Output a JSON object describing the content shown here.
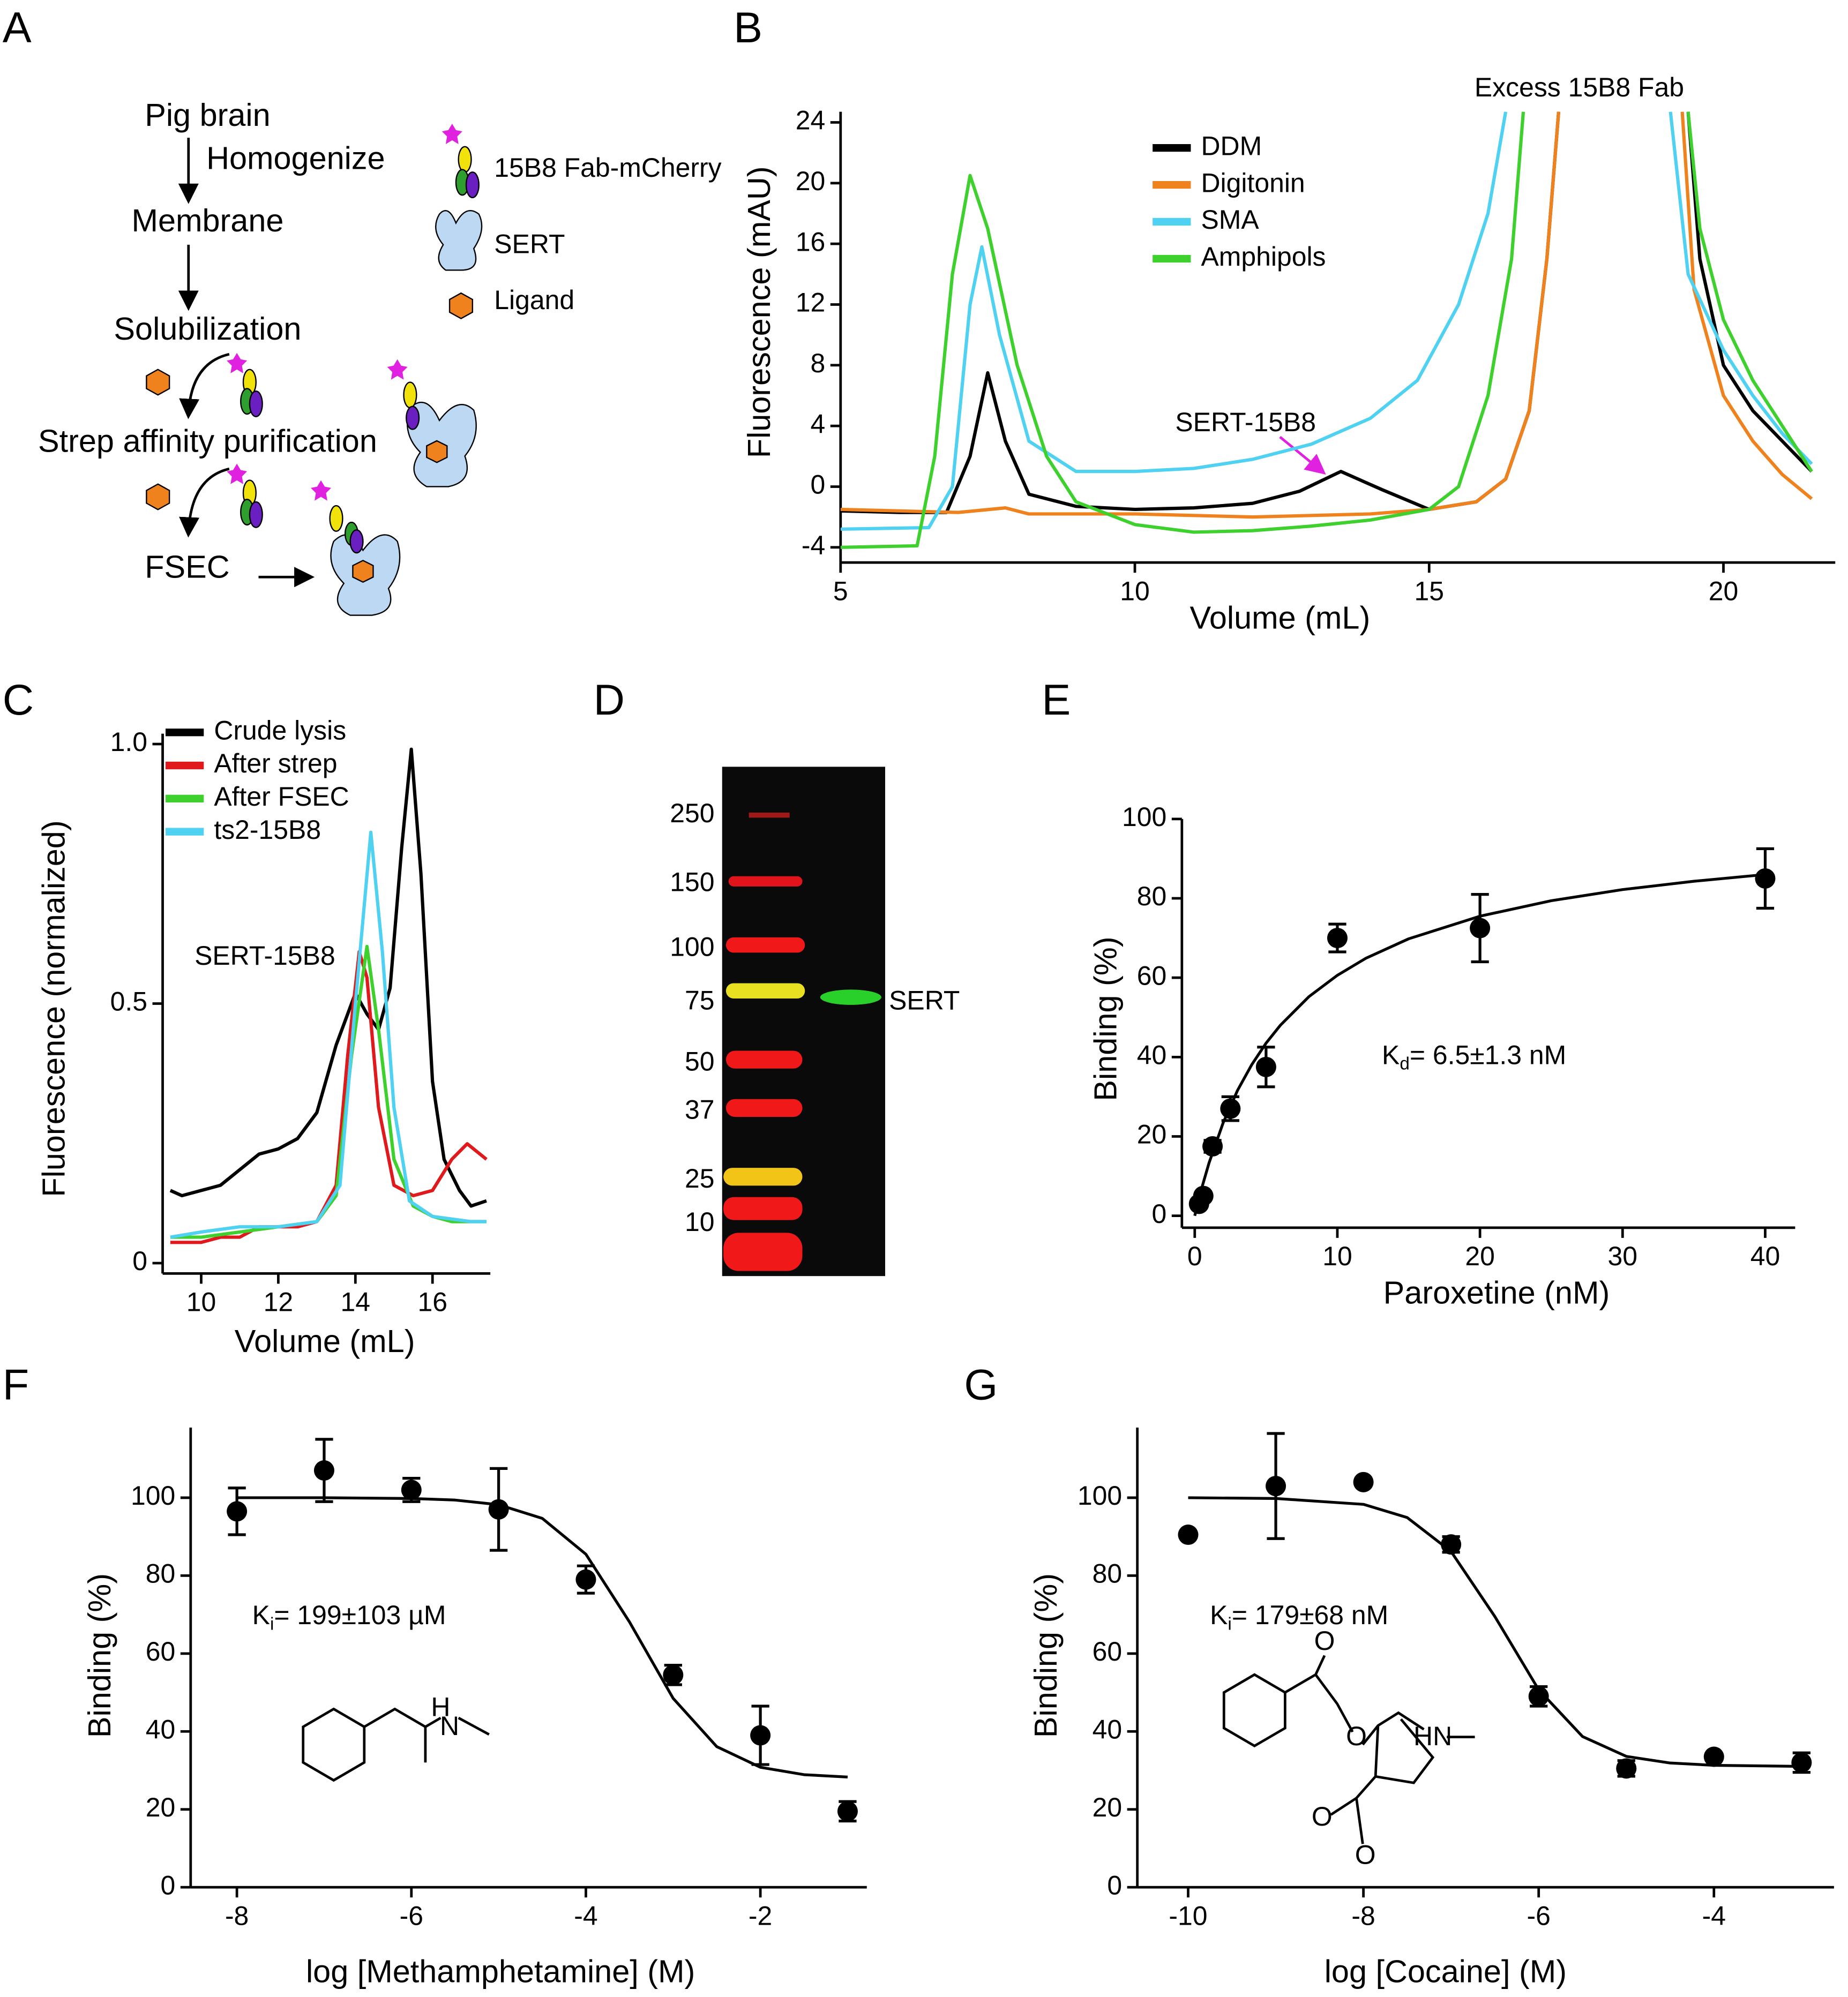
{
  "diagram": {
    "panel": "A",
    "steps": [
      "Pig brain",
      "Membrane",
      "Solubilization",
      "Strep affinity purification",
      "FSEC"
    ],
    "action": "Homogenize",
    "legend": [
      "15B8 Fab-mCherry",
      "SERT",
      "Ligand"
    ]
  },
  "gel": {
    "panel": "D",
    "markers": [
      "250",
      "150",
      "100",
      "75",
      "50",
      "37",
      "25",
      "10"
    ],
    "band_label": "SERT"
  },
  "chart_data": [
    {
      "panel": "B",
      "type": "line",
      "xlabel": "Volume (mL)",
      "ylabel": "Fluorescence  (mAU)",
      "xlim": [
        5,
        21.9
      ],
      "ylim": [
        -5,
        24.7
      ],
      "xticks": [
        5,
        10,
        15,
        20
      ],
      "yticks": [
        -4,
        0,
        4,
        8,
        12,
        16,
        20,
        24
      ],
      "annotations": [
        "Excess 15B8 Fab",
        "SERT-15B8"
      ],
      "series": [
        {
          "name": "DDM",
          "color": "#000000",
          "x": [
            5,
            6,
            6.8,
            7.2,
            7.5,
            7.8,
            8.2,
            9,
            10,
            11,
            12,
            12.8,
            13.5,
            14.2,
            15,
            15.8,
            16.3,
            16.7,
            17,
            17.2,
            null,
            19.4,
            19.6,
            20,
            20.5,
            21,
            21.5
          ],
          "values": [
            -1.6,
            -1.7,
            -1.7,
            2,
            7.5,
            3,
            -0.5,
            -1.3,
            -1.5,
            -1.4,
            -1.1,
            -0.3,
            1,
            -0.2,
            -1.5,
            -1,
            0.5,
            5,
            15,
            24.7,
            null,
            24.7,
            15,
            8,
            5,
            3,
            1
          ]
        },
        {
          "name": "Digitonin",
          "color": "#f0821e",
          "x": [
            5,
            7,
            7.8,
            8.2,
            10,
            12,
            14,
            15,
            15.8,
            16.3,
            16.7,
            17,
            17.2,
            null,
            19.3,
            19.5,
            20,
            20.5,
            21,
            21.5
          ],
          "values": [
            -1.5,
            -1.7,
            -1.4,
            -1.8,
            -1.8,
            -2,
            -1.8,
            -1.5,
            -1,
            0.5,
            5,
            15,
            24.7,
            null,
            24.7,
            13,
            6,
            3,
            0.8,
            -0.8
          ]
        },
        {
          "name": "SMA",
          "color": "#4fd2f2",
          "x": [
            5,
            6.5,
            6.9,
            7.2,
            7.4,
            7.7,
            8.2,
            9,
            10,
            11,
            12,
            13,
            14,
            14.8,
            15.5,
            16,
            16.3,
            null,
            19.1,
            19.4,
            20,
            20.5,
            21,
            21.5
          ],
          "values": [
            -2.8,
            -2.7,
            0,
            12,
            15.8,
            10,
            3,
            1,
            1,
            1.2,
            1.8,
            2.8,
            4.5,
            7,
            12,
            18,
            24.7,
            null,
            24.7,
            14,
            9,
            6,
            3.5,
            1.5
          ]
        },
        {
          "name": "Amphipols",
          "color": "#3ed12e",
          "x": [
            5,
            6.3,
            6.6,
            6.9,
            7.2,
            7.5,
            8,
            8.5,
            9,
            10,
            11,
            12,
            13,
            14,
            15,
            15.5,
            16,
            16.4,
            16.6,
            null,
            19.4,
            19.6,
            20,
            20.5,
            21,
            21.5
          ],
          "values": [
            -4,
            -3.9,
            2,
            14,
            20.5,
            17,
            8,
            2,
            -1,
            -2.5,
            -3,
            -2.9,
            -2.6,
            -2.2,
            -1.5,
            0,
            6,
            15,
            24.7,
            null,
            24.7,
            17,
            11,
            7,
            4,
            1
          ]
        }
      ]
    },
    {
      "panel": "C",
      "type": "line",
      "xlabel": "Volume (mL)",
      "ylabel": "Fluorescence (normalized)",
      "xlim": [
        9,
        17.5
      ],
      "ylim": [
        -0.02,
        1.02
      ],
      "xticks": [
        10,
        12,
        14,
        16
      ],
      "yticks": [
        0,
        0.5,
        {
          "value": 1,
          "label": "1.0"
        }
      ],
      "annotations": [
        "SERT-15B8"
      ],
      "series": [
        {
          "name": "Crude lysis",
          "color": "#000000",
          "x": [
            9.2,
            9.5,
            10,
            10.5,
            11,
            11.5,
            12,
            12.5,
            13,
            13.5,
            14,
            14.3,
            14.6,
            14.9,
            15.2,
            15.45,
            15.7,
            16,
            16.3,
            16.7,
            17,
            17.4
          ],
          "values": [
            0.14,
            0.13,
            0.14,
            0.15,
            0.18,
            0.21,
            0.22,
            0.24,
            0.29,
            0.42,
            0.52,
            0.48,
            0.45,
            0.53,
            0.8,
            0.99,
            0.75,
            0.35,
            0.2,
            0.14,
            0.11,
            0.12
          ]
        },
        {
          "name": "After strep",
          "color": "#e0191c",
          "x": [
            9.2,
            10,
            10.5,
            11,
            11.5,
            12,
            12.5,
            13,
            13.5,
            13.8,
            14.1,
            14.3,
            14.6,
            15,
            15.5,
            16,
            16.5,
            16.9,
            17.4
          ],
          "values": [
            0.04,
            0.04,
            0.05,
            0.05,
            0.07,
            0.07,
            0.07,
            0.08,
            0.15,
            0.4,
            0.6,
            0.55,
            0.3,
            0.15,
            0.13,
            0.14,
            0.2,
            0.23,
            0.2
          ]
        },
        {
          "name": "After FSEC",
          "color": "#3ed12e",
          "x": [
            9.2,
            10,
            11,
            12,
            13,
            13.5,
            13.9,
            14.3,
            14.6,
            15,
            15.5,
            16,
            16.5,
            17.4
          ],
          "values": [
            0.05,
            0.05,
            0.06,
            0.07,
            0.08,
            0.13,
            0.4,
            0.61,
            0.45,
            0.2,
            0.11,
            0.09,
            0.08,
            0.08
          ]
        },
        {
          "name": "ts2-15B8",
          "color": "#4fd2f2",
          "x": [
            9.2,
            10,
            11,
            12,
            13,
            13.6,
            14,
            14.4,
            14.7,
            15,
            15.4,
            16,
            17,
            17.4
          ],
          "values": [
            0.05,
            0.06,
            0.07,
            0.07,
            0.08,
            0.15,
            0.5,
            0.83,
            0.6,
            0.3,
            0.12,
            0.09,
            0.08,
            0.08
          ]
        }
      ]
    },
    {
      "panel": "E",
      "type": "scatter",
      "xlabel": "Paroxetine (nM)",
      "ylabel": "Binding (%)",
      "xlim": [
        -0.9,
        42.1
      ],
      "ylim": [
        -3,
        100
      ],
      "xticks": [
        0,
        10,
        20,
        30,
        40
      ],
      "yticks": [
        0,
        20,
        40,
        60,
        80,
        100
      ],
      "annotation": [
        "K",
        "d",
        "= 6.5±1.3 nM"
      ],
      "x": [
        0.3,
        0.6,
        1.25,
        2.5,
        5,
        10,
        20,
        40
      ],
      "values": [
        3,
        5,
        17.5,
        27,
        37.5,
        70,
        72.5,
        85
      ],
      "errors": [
        0,
        0,
        1.5,
        3,
        5,
        3.5,
        8.5,
        7.5
      ],
      "fit": {
        "x": [
          0,
          0.5,
          1,
          2,
          3,
          4,
          5,
          6,
          8,
          10,
          12,
          15,
          20,
          25,
          30,
          35,
          40
        ],
        "values": [
          0,
          7.1,
          13.3,
          23.5,
          31.6,
          38.1,
          43.5,
          48,
          55.2,
          60.6,
          64.9,
          69.8,
          75.5,
          79.4,
          82.2,
          84.3,
          86
        ]
      }
    },
    {
      "panel": "F",
      "type": "scatter",
      "xlabel": "log [Methamphetamine] (M)",
      "ylabel": "Binding (%)",
      "xlim": [
        -8.53,
        -0.78
      ],
      "ylim": [
        0,
        118
      ],
      "xticks": [
        -8,
        -6,
        -4,
        -2
      ],
      "yticks": [
        0,
        20,
        40,
        60,
        80,
        100
      ],
      "annotation": [
        "K",
        "i",
        "= 199±103 µM"
      ],
      "structure_labels": [
        "H",
        "N"
      ],
      "x": [
        -8,
        -7,
        -6,
        -5,
        -4,
        -3,
        -2,
        -1
      ],
      "values": [
        96.5,
        107,
        102,
        97,
        79,
        54.5,
        39,
        19.5
      ],
      "errors": [
        6,
        8,
        3,
        10.5,
        3.5,
        2.5,
        7.5,
        2.5
      ],
      "fit": {
        "x": [
          -8,
          -7,
          -6,
          -5.5,
          -5,
          -4.5,
          -4,
          -3.5,
          -3,
          -2.5,
          -2,
          -1.5,
          -1
        ],
        "values": [
          100,
          100,
          99.8,
          99.4,
          98.2,
          94.7,
          85.5,
          68.1,
          48.5,
          36.1,
          30.8,
          28.9,
          28.3
        ]
      }
    },
    {
      "panel": "G",
      "type": "scatter",
      "xlabel": "log [Cocaine] (M)",
      "ylabel": "Binding (%)",
      "xlim": [
        -10.58,
        -2.63
      ],
      "ylim": [
        0,
        118
      ],
      "xticks": [
        -10,
        -8,
        -6,
        -4
      ],
      "yticks": [
        0,
        20,
        40,
        60,
        80,
        100
      ],
      "annotation": [
        "K",
        "i",
        "= 179±68 nM"
      ],
      "structure_labels": [
        "O",
        "O",
        "HN",
        "O",
        "O"
      ],
      "x": [
        -10,
        -9,
        -8,
        -7,
        -6,
        -5,
        -4,
        -3
      ],
      "values": [
        90.5,
        103,
        104,
        88,
        49,
        30.5,
        33.5,
        32
      ],
      "errors": [
        0,
        13.5,
        0,
        2,
        2.5,
        2,
        0,
        2.5
      ],
      "fit": {
        "x": [
          -10,
          -9,
          -8,
          -7.5,
          -7,
          -6.5,
          -6,
          -5.5,
          -5,
          -4.5,
          -4,
          -3
        ],
        "values": [
          100,
          99.8,
          98.3,
          94.9,
          86.2,
          69.5,
          50.7,
          38.7,
          33.6,
          31.9,
          31.3,
          31.03
        ]
      }
    }
  ]
}
